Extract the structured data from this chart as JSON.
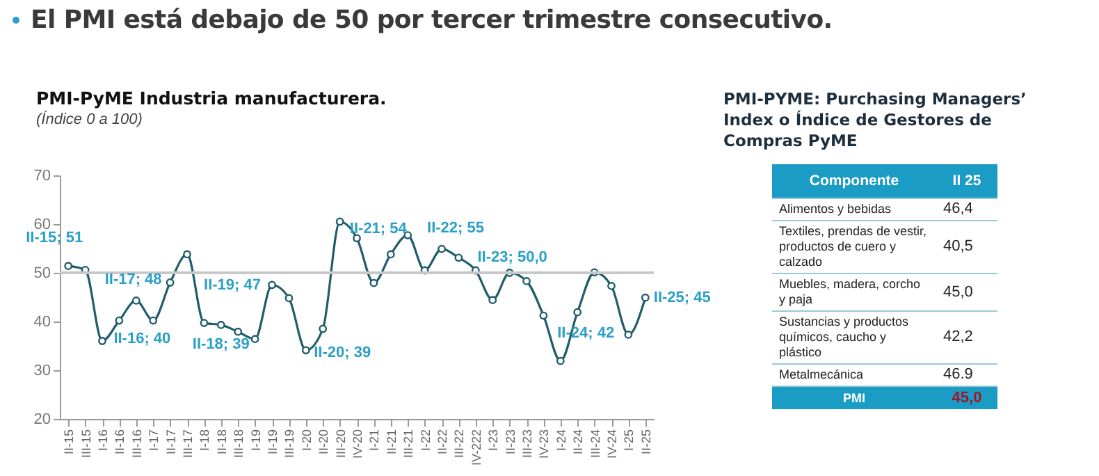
{
  "chart_data": [
    {
      "type": "line",
      "title": "El PMI está debajo de 50 por tercer trimestre consecutivo.",
      "subtitle": "PMI-PyME Industria manufacturera.",
      "ylabel": "(Índice 0 a 100)",
      "categories": [
        "II-15",
        "III-15",
        "I-16",
        "II-16",
        "III-16",
        "I-17",
        "II-17",
        "III-17",
        "I-18",
        "II-18",
        "III-18",
        "I-19",
        "II-19",
        "III-19",
        "I-20",
        "II-20",
        "III-20",
        "IV-20",
        "I-21",
        "II-21",
        "III-21",
        "I-22",
        "II-22",
        "III-22",
        "IV-222",
        "I-23",
        "II-23",
        "III-23",
        "IV-23",
        "I-24",
        "II-24",
        "III-24",
        "IV-24",
        "I-25",
        "II-25"
      ],
      "series": [
        {
          "color": "#1f5d6b",
          "values": [
            51.4,
            50.6,
            36.0,
            40.2,
            44.3,
            40.2,
            48.0,
            53.8,
            39.7,
            39.3,
            37.9,
            36.4,
            47.5,
            44.8,
            34.1,
            38.5,
            60.5,
            57.1,
            47.9,
            53.8,
            57.7,
            50.5,
            54.9,
            53.1,
            50.5,
            44.4,
            50.0,
            48.3,
            41.2,
            31.9,
            41.9,
            50.1,
            47.3,
            37.3,
            44.9
          ],
          "value_labels": [
            "II-15; 51",
            null,
            null,
            "II-16; 40",
            null,
            null,
            "II-17; 48",
            null,
            null,
            "II-18; 39",
            null,
            null,
            "II-19; 47",
            null,
            null,
            "II-20; 39",
            null,
            null,
            null,
            "II-21; 54",
            null,
            null,
            "II-22; 55",
            null,
            null,
            null,
            "II-23; 50,0",
            null,
            null,
            null,
            "II-24; 42",
            null,
            null,
            null,
            "II-25; 45"
          ]
        }
      ],
      "ylim": [
        20,
        70
      ],
      "yticks": [
        20,
        30,
        40,
        50,
        60,
        70
      ],
      "grid": false,
      "marker": "circle",
      "line_style": "solid",
      "ref_lines": [
        {
          "axis": "y",
          "value": 50,
          "color": "#c8c8c8"
        }
      ]
    },
    {
      "type": "other",
      "title": "PMI-PYME: Purchasing Managers’ Index o Índice de Gestores de Compras PyME",
      "annotations": [
        "Componente",
        "II 25",
        "Alimentos y bebidas",
        "46,4",
        "Textiles, prendas de vestir, productos de cuero y calzado",
        "40,5",
        "Muebles, madera, corcho y paja",
        "45,0",
        "Sustancias y productos químicos, caucho y plástico",
        "42,2",
        "Metalmecánica",
        "46.9",
        "PMI",
        "45,0"
      ]
    }
  ]
}
